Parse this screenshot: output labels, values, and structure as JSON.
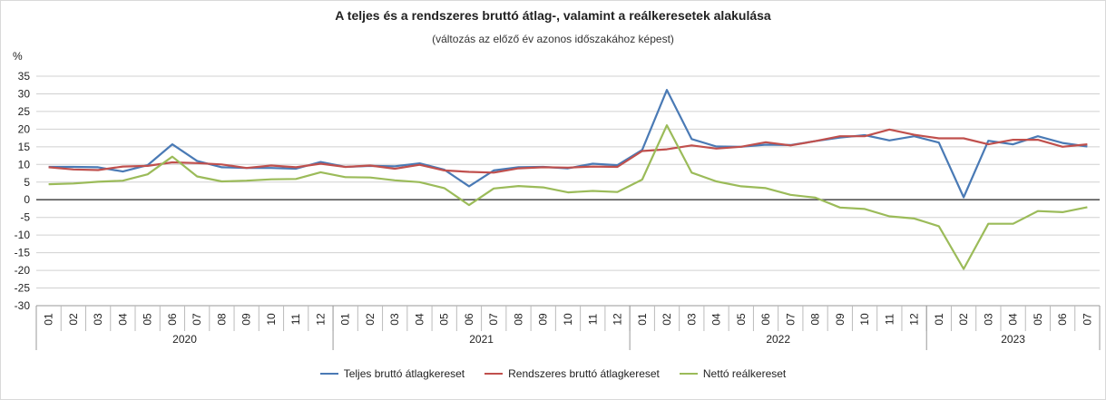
{
  "chart_data": {
    "type": "line",
    "title": "A teljes és a rendszeres bruttó átlag-, valamint a reálkeresetek alakulása",
    "subtitle": "(változás az előző év azonos időszakához képest)",
    "ylabel": "%",
    "ylim": [
      -30,
      35
    ],
    "yticks": [
      35,
      30,
      25,
      20,
      15,
      10,
      5,
      0,
      -5,
      -10,
      -15,
      -20,
      -25,
      -30
    ],
    "grid": true,
    "legend_position": "bottom",
    "months": [
      "01",
      "02",
      "03",
      "04",
      "05",
      "06",
      "07",
      "08",
      "09",
      "10",
      "11",
      "12",
      "01",
      "02",
      "03",
      "04",
      "05",
      "06",
      "07",
      "08",
      "09",
      "10",
      "11",
      "12",
      "01",
      "02",
      "03",
      "04",
      "05",
      "06",
      "07",
      "08",
      "09",
      "10",
      "11",
      "12",
      "01",
      "02",
      "03",
      "04",
      "05",
      "06",
      "07"
    ],
    "years": [
      {
        "label": "2020",
        "count": 12
      },
      {
        "label": "2021",
        "count": 12
      },
      {
        "label": "2022",
        "count": 12
      },
      {
        "label": "2023",
        "count": 7
      }
    ],
    "series": [
      {
        "name": "Teljes bruttó átlagkereset",
        "color": "#4a7ab5",
        "values": [
          9.3,
          9.3,
          9.2,
          8.0,
          9.8,
          15.7,
          11.0,
          9.2,
          9.0,
          9.0,
          8.8,
          10.7,
          9.3,
          9.6,
          9.5,
          10.3,
          8.5,
          3.8,
          8.3,
          9.2,
          9.3,
          8.9,
          10.2,
          9.8,
          14.1,
          31.1,
          17.2,
          15.1,
          15.0,
          15.6,
          15.5,
          16.6,
          17.6,
          18.3,
          16.8,
          18.0,
          16.2,
          0.7,
          16.7,
          15.7,
          18.0,
          16.1,
          15.1
        ]
      },
      {
        "name": "Rendszeres bruttó átlagkereset",
        "color": "#c0504d",
        "values": [
          9.2,
          8.6,
          8.4,
          9.4,
          9.6,
          10.6,
          10.4,
          10.0,
          9.0,
          9.7,
          9.2,
          10.2,
          9.3,
          9.7,
          8.8,
          9.9,
          8.3,
          7.9,
          7.7,
          8.9,
          9.2,
          9.1,
          9.4,
          9.3,
          13.8,
          14.3,
          15.4,
          14.5,
          15.0,
          16.3,
          15.4,
          16.6,
          18.0,
          18.0,
          19.9,
          18.4,
          17.4,
          17.4,
          15.7,
          17.0,
          17.0,
          15.0,
          15.7
        ]
      },
      {
        "name": "Nettó reálkereset",
        "color": "#9bbb59",
        "values": [
          4.4,
          4.6,
          5.1,
          5.4,
          7.2,
          12.2,
          6.6,
          5.2,
          5.4,
          5.8,
          5.9,
          7.8,
          6.4,
          6.3,
          5.5,
          5.0,
          3.3,
          -1.5,
          3.2,
          3.9,
          3.5,
          2.1,
          2.5,
          2.2,
          5.7,
          21.1,
          7.7,
          5.2,
          3.8,
          3.3,
          1.4,
          0.6,
          -2.2,
          -2.6,
          -4.7,
          -5.3,
          -7.5,
          -19.6,
          -6.8,
          -6.8,
          -3.2,
          -3.5,
          -2.1
        ]
      }
    ]
  }
}
